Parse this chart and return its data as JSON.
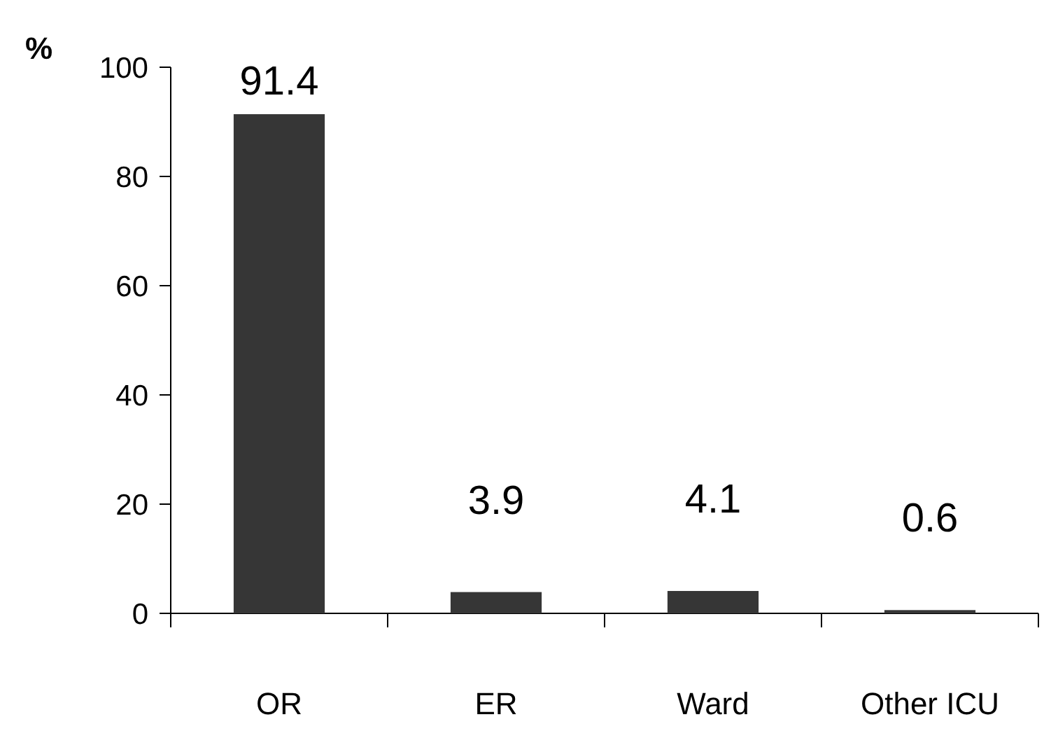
{
  "chart_data": {
    "type": "bar",
    "ylabel": "%",
    "categories": [
      "OR",
      "ER",
      "Ward",
      "Other ICU"
    ],
    "values": [
      91.4,
      3.9,
      4.1,
      0.6
    ],
    "color": "#363636",
    "ylim": [
      0,
      100
    ],
    "yticks": [
      0,
      20,
      40,
      60,
      80,
      100
    ],
    "data_labels": true
  }
}
